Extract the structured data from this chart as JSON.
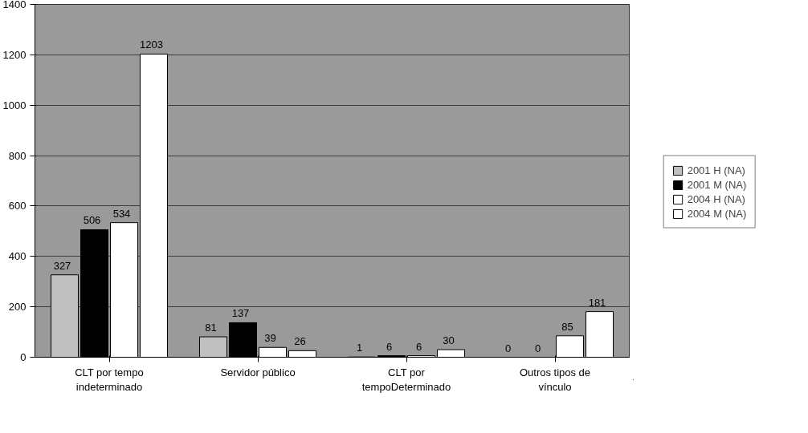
{
  "chart_data": {
    "type": "bar",
    "categories": [
      "CLT por tempo\nindeterminado",
      "Servidor público",
      "CLT por\ntempoDeterminado",
      "Outros tipos de\nvínculo"
    ],
    "series": [
      {
        "name": "2001 H (NA)",
        "color": "#c0c0c0",
        "values": [
          327,
          81,
          1,
          0
        ]
      },
      {
        "name": "2001 M (NA)",
        "color": "#000000",
        "values": [
          506,
          137,
          6,
          0
        ]
      },
      {
        "name": "2004 H (NA)",
        "color": "#ffffff",
        "values": [
          534,
          39,
          6,
          85
        ]
      },
      {
        "name": "2004 M (NA)",
        "color": "#ffffff",
        "values": [
          1203,
          26,
          30,
          181
        ]
      }
    ],
    "ylim": [
      0,
      1400
    ],
    "yticks": [
      0,
      200,
      400,
      600,
      800,
      1000,
      1200,
      1400
    ],
    "grid": "y",
    "legend": "right",
    "data_labels": true
  }
}
